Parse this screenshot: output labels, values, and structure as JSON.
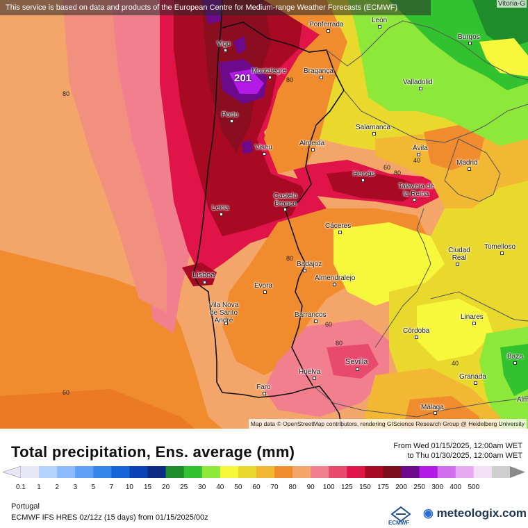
{
  "header": {
    "banner": "This service is based on data and products of the European Centre for Medium-range Weather Forecasts (ECMWF)",
    "corner_city": "Vitoria-G"
  },
  "map": {
    "attribution": "Map data © OpenStreetMap contributors, rendering GIScience Research Group @ Heidelberg University",
    "max_value_label": "201",
    "cities": [
      {
        "name": "Vigo"
      },
      {
        "name": "Ponferrada"
      },
      {
        "name": "León"
      },
      {
        "name": "Burgos"
      },
      {
        "name": "Montalegre"
      },
      {
        "name": "Bragança"
      },
      {
        "name": "Valladolid"
      },
      {
        "name": "Porto"
      },
      {
        "name": "Salamanca"
      },
      {
        "name": "Viseu"
      },
      {
        "name": "Almeida"
      },
      {
        "name": "Ávila"
      },
      {
        "name": "Madrid"
      },
      {
        "name": "Hervás"
      },
      {
        "name": "Talavera de la Reina"
      },
      {
        "name": "Castelo Branco"
      },
      {
        "name": "Leiria"
      },
      {
        "name": "Cáceres"
      },
      {
        "name": "Ciudad Real"
      },
      {
        "name": "Tomelloso"
      },
      {
        "name": "Badajoz"
      },
      {
        "name": "Lisboa"
      },
      {
        "name": "Évora"
      },
      {
        "name": "Almendralejo"
      },
      {
        "name": "Vila Nova de Santo André"
      },
      {
        "name": "Barrancos"
      },
      {
        "name": "Linares"
      },
      {
        "name": "Córdoba"
      },
      {
        "name": "Sevilla"
      },
      {
        "name": "Baza"
      },
      {
        "name": "Huelva"
      },
      {
        "name": "Granada"
      },
      {
        "name": "Faro"
      },
      {
        "name": "Málaga"
      },
      {
        "name": "Alm"
      }
    ],
    "contour_labels": [
      "80",
      "80",
      "60",
      "80",
      "40",
      "80",
      "80",
      "60",
      "80",
      "40",
      "60"
    ]
  },
  "title": "Total precipitation, Ens. average (mm)",
  "period": {
    "from": "From Wed 01/15/2025, 12:00am WET",
    "to": "to Thu 01/30/2025, 12:00am WET"
  },
  "legend": {
    "stops": [
      {
        "label": "0.1",
        "color": "#e6e6f7"
      },
      {
        "label": "1",
        "color": "#b5d3ff"
      },
      {
        "label": "2",
        "color": "#8cbcff"
      },
      {
        "label": "3",
        "color": "#5fa0f7"
      },
      {
        "label": "5",
        "color": "#3585ea"
      },
      {
        "label": "7",
        "color": "#1565d8"
      },
      {
        "label": "10",
        "color": "#0a43b5"
      },
      {
        "label": "15",
        "color": "#0d2a85"
      },
      {
        "label": "20",
        "color": "#1e8c2a"
      },
      {
        "label": "25",
        "color": "#32c22f"
      },
      {
        "label": "30",
        "color": "#8ee83a"
      },
      {
        "label": "40",
        "color": "#f7f73c"
      },
      {
        "label": "50",
        "color": "#e9d92c"
      },
      {
        "label": "60",
        "color": "#f2b733"
      },
      {
        "label": "70",
        "color": "#f08c2e"
      },
      {
        "label": "80",
        "color": "#f4a56a"
      },
      {
        "label": "90",
        "color": "#f27f8e"
      },
      {
        "label": "100",
        "color": "#e84a6e"
      },
      {
        "label": "125",
        "color": "#e01448"
      },
      {
        "label": "150",
        "color": "#a80a24"
      },
      {
        "label": "175",
        "color": "#7c0e1e"
      },
      {
        "label": "200",
        "color": "#6d0a8c"
      },
      {
        "label": "250",
        "color": "#b31ae6"
      },
      {
        "label": "300",
        "color": "#d36df0"
      },
      {
        "label": "400",
        "color": "#e8aaf2"
      },
      {
        "label": "500",
        "color": "#f4e0f6"
      },
      {
        "label": "",
        "color": "#cfcfcf"
      }
    ]
  },
  "footer": {
    "region": "Portugal",
    "model": "ECMWF IFS HRES 0z/12z (15 days) from  01/15/2025/00z",
    "ecmwf_logo": "ECMWF",
    "brand": "meteologix.com"
  }
}
